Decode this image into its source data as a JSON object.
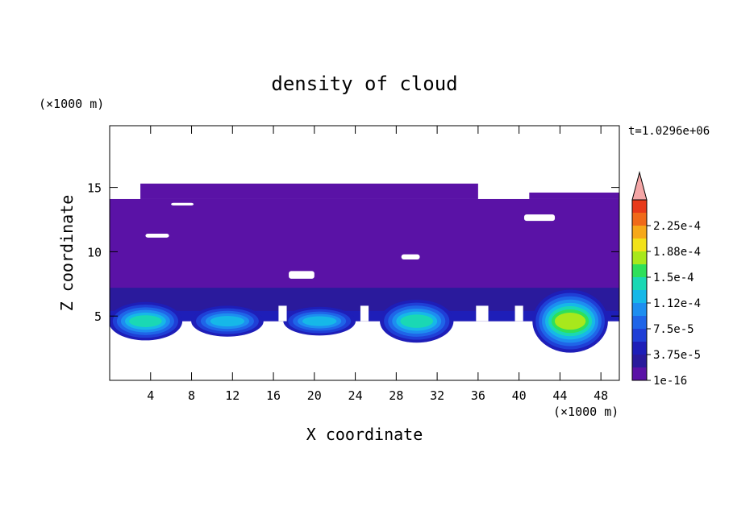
{
  "chart_data": {
    "type": "heatmap",
    "title": "density of cloud",
    "xlabel": "X coordinate",
    "ylabel": "Z coordinate",
    "x_unit": "(×1000 m)",
    "y_unit": "(×1000 m)",
    "time_label": "t=1.0296e+06",
    "xlim": [
      0,
      49.8
    ],
    "ylim": [
      0,
      19.8
    ],
    "x_ticks": [
      4,
      8,
      12,
      16,
      20,
      24,
      28,
      32,
      36,
      40,
      44,
      48
    ],
    "y_ticks": [
      5,
      10,
      15
    ],
    "colorbar": {
      "labels": [
        "2.25e-4",
        "1.88e-4",
        "1.5e-4",
        "1.12e-4",
        "7.5e-5",
        "3.75e-5",
        "1e-16"
      ],
      "levels": [
        1e-16,
        1.875e-05,
        3.75e-05,
        5.625e-05,
        7.5e-05,
        9.375e-05,
        0.0001125,
        0.00013125,
        0.00015,
        0.00016875,
        0.0001875,
        0.00020625,
        0.000225,
        0.00024375
      ],
      "colors": [
        "#5a12a6",
        "#2a1a9c",
        "#1e1eb8",
        "#1f3fd6",
        "#1f65e8",
        "#1d8ef0",
        "#16b8e8",
        "#1ad8b4",
        "#2ee05a",
        "#a8e81c",
        "#f2e21a",
        "#f6a81a",
        "#f06a1a",
        "#e83a1a"
      ],
      "extend_color": "#f4a6a6"
    },
    "regions": {
      "cloud_base_z": 4.6,
      "cloud_top_z": 15.3,
      "dense_cores": [
        {
          "x_center": 3.5,
          "z_top": 6.3,
          "level": 7
        },
        {
          "x_center": 11.5,
          "z_top": 6.0,
          "level": 6
        },
        {
          "x_center": 20.5,
          "z_top": 5.9,
          "level": 6
        },
        {
          "x_center": 30.0,
          "z_top": 6.5,
          "level": 7
        },
        {
          "x_center": 45.0,
          "z_top": 7.3,
          "level": 9
        }
      ]
    }
  }
}
